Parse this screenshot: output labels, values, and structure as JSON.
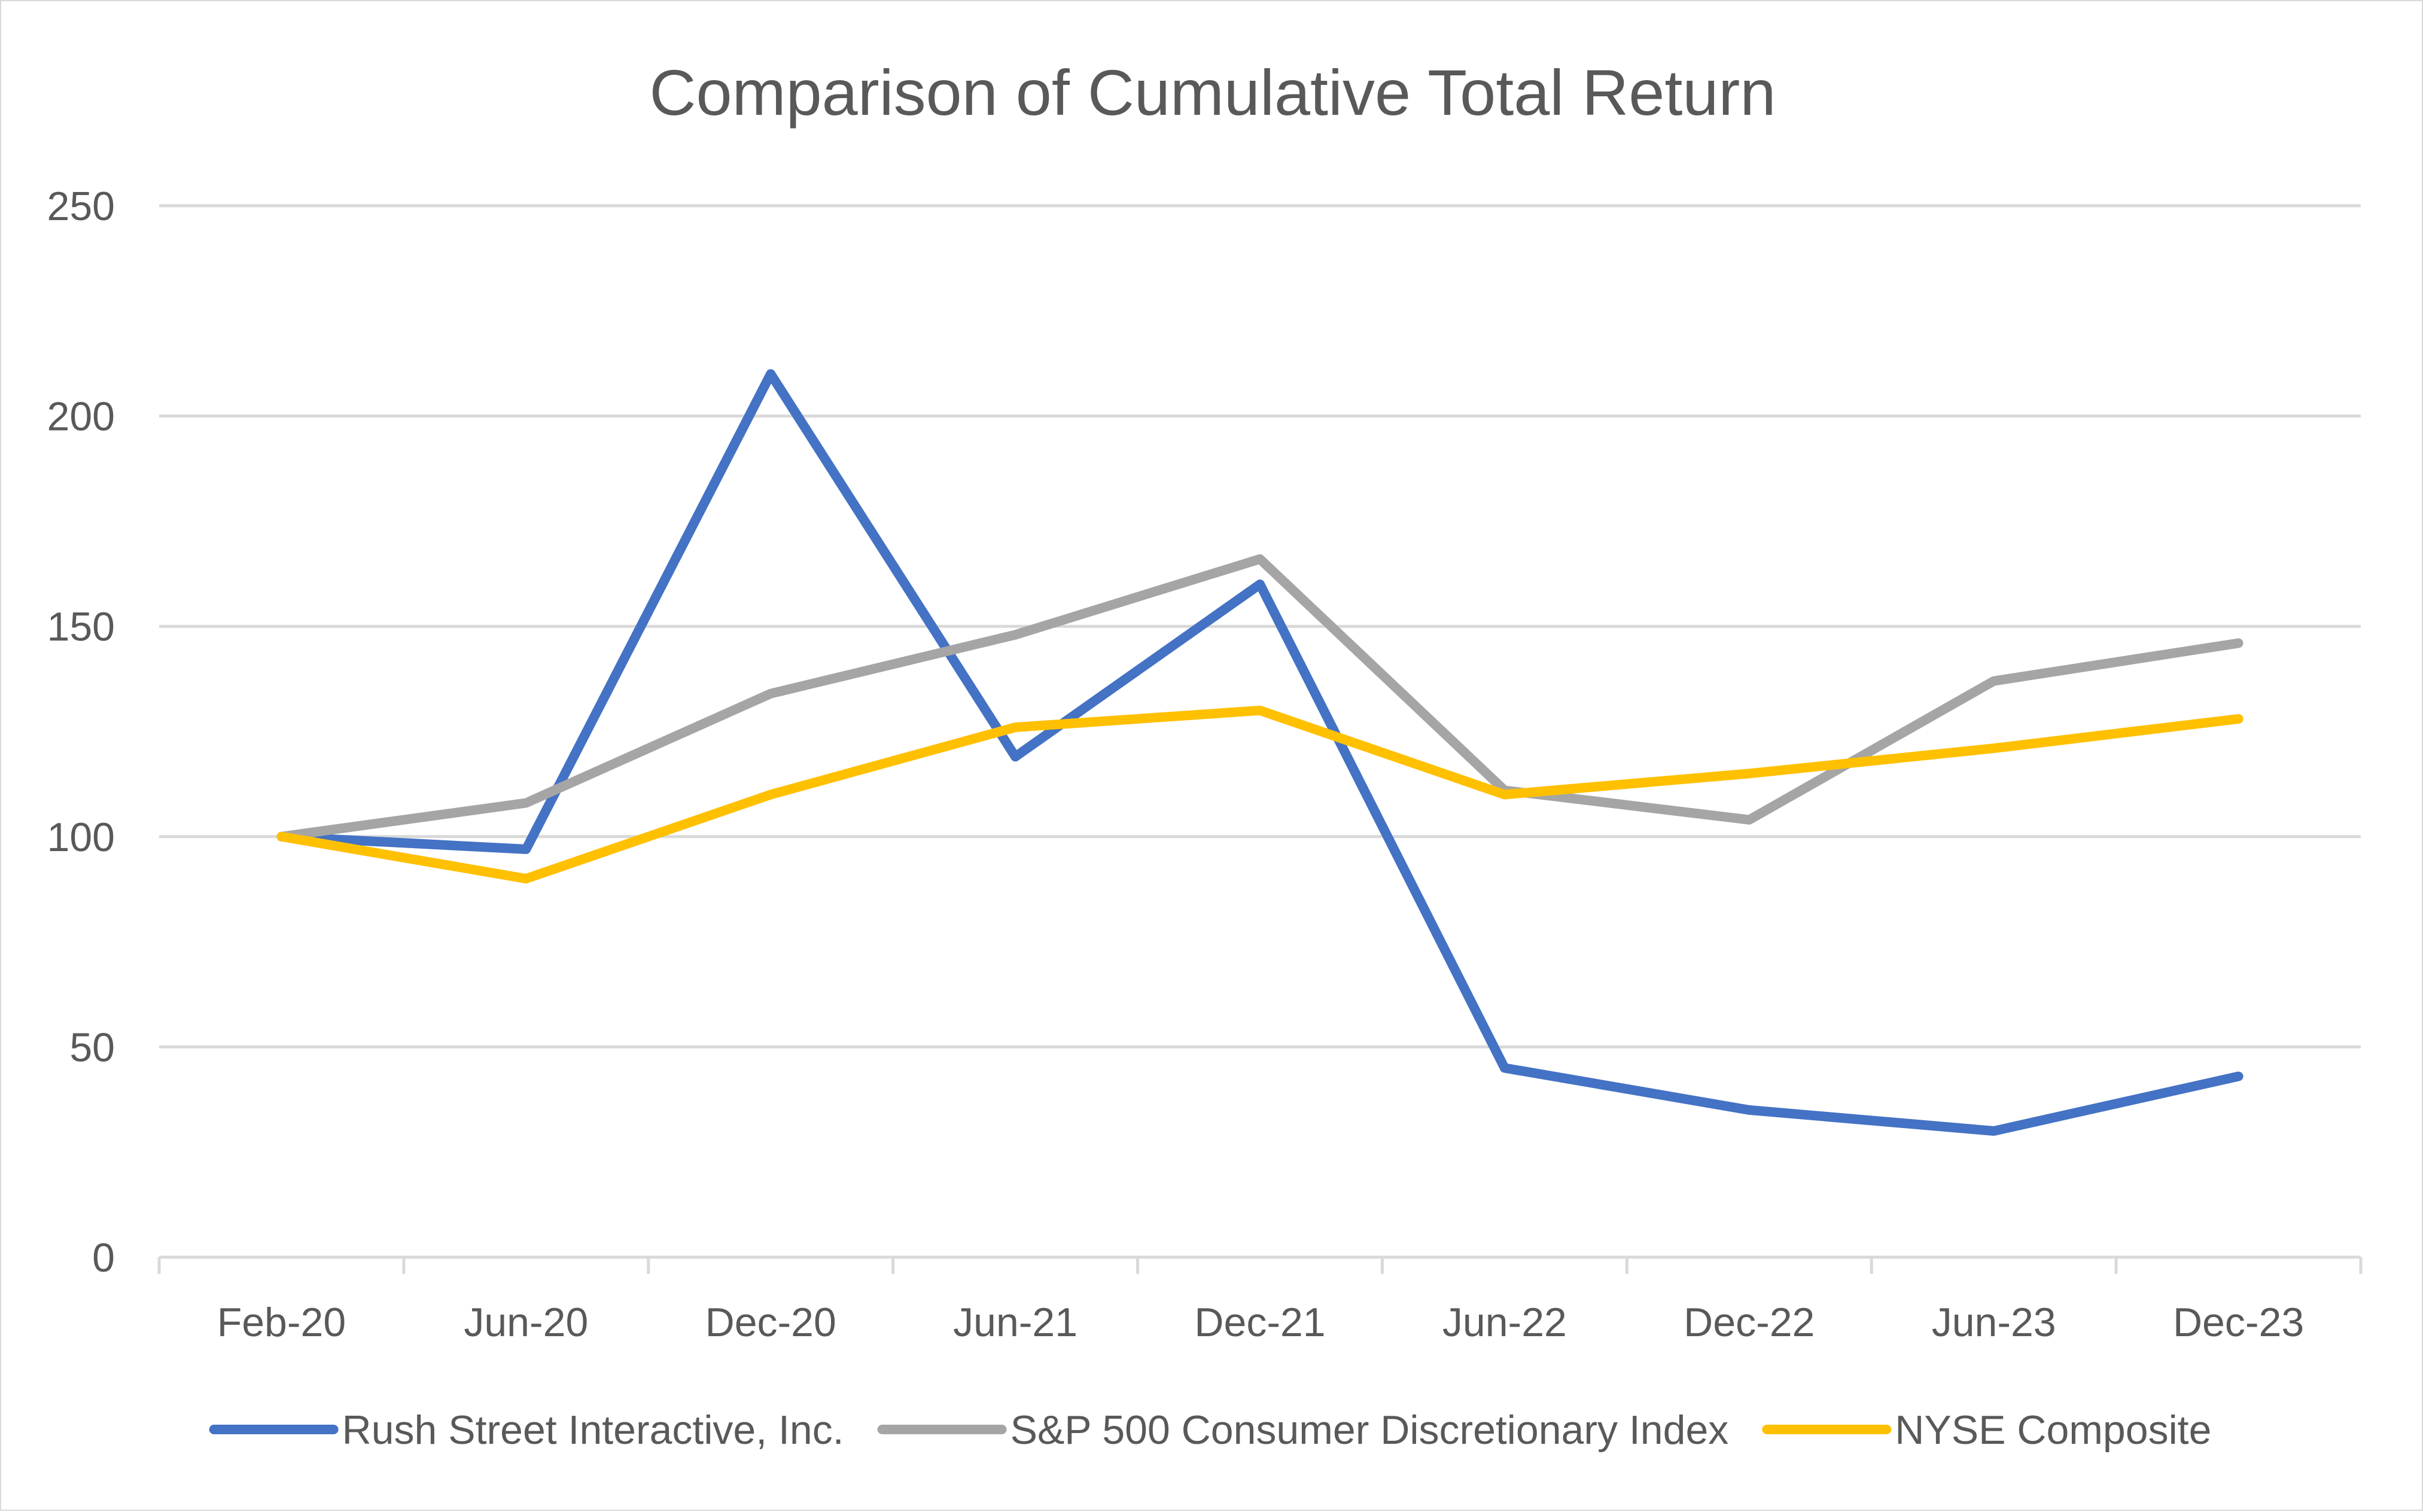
{
  "chart_data": {
    "type": "line",
    "title": "Comparison of Cumulative Total Return",
    "xlabel": "",
    "ylabel": "",
    "categories": [
      "Feb-20",
      "Jun-20",
      "Dec-20",
      "Jun-21",
      "Dec-21",
      "Jun-22",
      "Dec-22",
      "Jun-23",
      "Dec-23"
    ],
    "ylim": [
      0,
      250
    ],
    "yticks": [
      "0",
      "50",
      "100",
      "150",
      "200",
      "250"
    ],
    "grid": true,
    "legend_position": "bottom",
    "series": [
      {
        "name": "Rush Street Interactive, Inc.",
        "color": "#4472c4",
        "values": [
          100,
          97,
          210,
          119,
          160,
          45,
          35,
          30,
          43
        ]
      },
      {
        "name": "S&P 500 Consumer Discretionary Index",
        "color": "#a5a5a5",
        "values": [
          100,
          108,
          134,
          148,
          166,
          111,
          104,
          137,
          146
        ]
      },
      {
        "name": "NYSE Composite",
        "color": "#ffc000",
        "values": [
          100,
          90,
          110,
          126,
          130,
          110,
          115,
          121,
          128
        ]
      }
    ]
  }
}
